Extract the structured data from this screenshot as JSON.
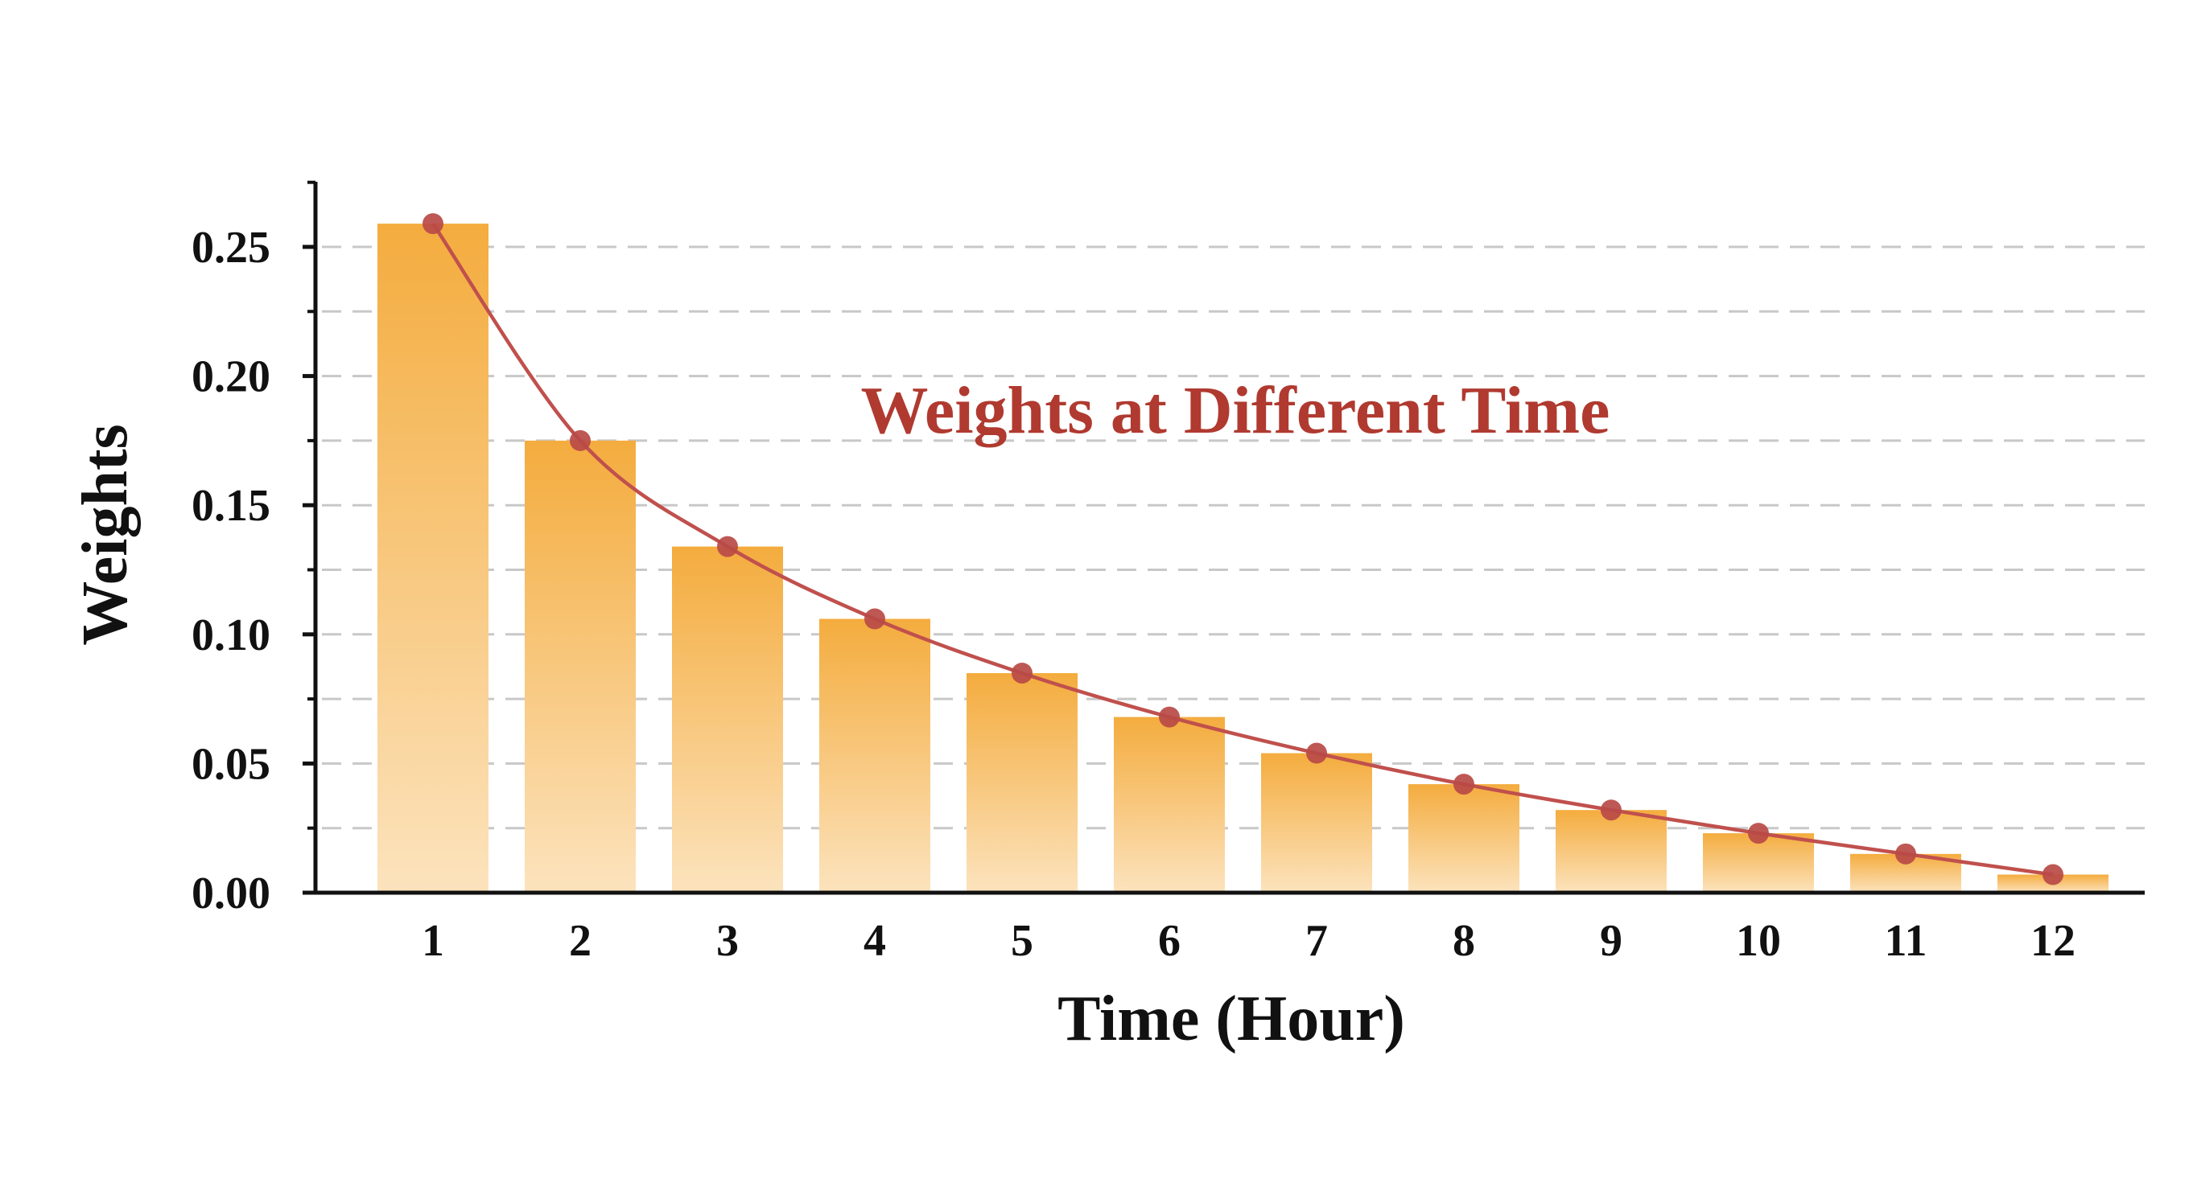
{
  "chart_data": {
    "type": "bar",
    "title": "Weights at Different Time",
    "xlabel": "Time (Hour)",
    "ylabel": "Weights",
    "categories": [
      "1",
      "2",
      "3",
      "4",
      "5",
      "6",
      "7",
      "8",
      "9",
      "10",
      "11",
      "12"
    ],
    "values": [
      0.259,
      0.175,
      0.134,
      0.106,
      0.085,
      0.068,
      0.054,
      0.042,
      0.032,
      0.023,
      0.015,
      0.007
    ],
    "line_values": [
      0.259,
      0.175,
      0.134,
      0.106,
      0.085,
      0.068,
      0.054,
      0.042,
      0.032,
      0.023,
      0.015,
      0.007
    ],
    "ylim": [
      0,
      0.275
    ],
    "yticks": [
      "0.00",
      "0.05",
      "0.10",
      "0.15",
      "0.20",
      "0.25"
    ],
    "ytick_values": [
      0,
      0.05,
      0.1,
      0.15,
      0.2,
      0.25
    ],
    "grid": "horizontal dashed",
    "colors": {
      "bar_top": "#f4ac3e",
      "bar_bottom": "#fce3bd",
      "line": "#c0504d",
      "marker": "#b84a47",
      "title": "#b03a30",
      "grid": "#c8c8c8",
      "axis": "#111111"
    }
  }
}
